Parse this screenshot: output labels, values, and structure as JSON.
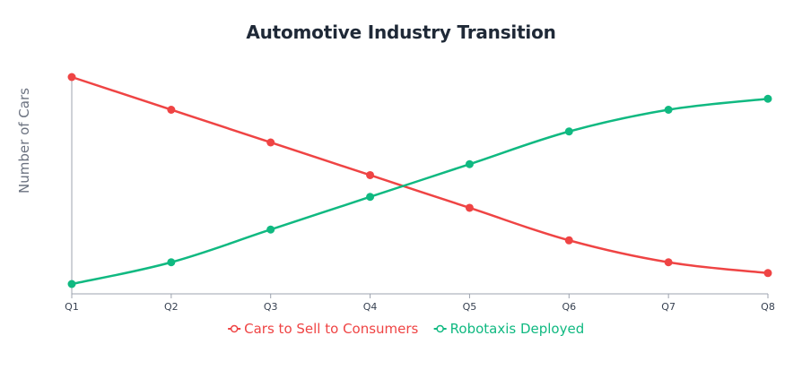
{
  "chart_data": {
    "type": "line",
    "title": "Automotive Industry Transition",
    "xlabel": "",
    "ylabel": "Number of Cars",
    "categories": [
      "Q1",
      "Q2",
      "Q3",
      "Q4",
      "Q5",
      "Q6",
      "Q7",
      "Q8"
    ],
    "ylim": [
      0,
      100
    ],
    "grid": false,
    "legend": "bottom",
    "series": [
      {
        "name": "Cars to Sell to Consumers",
        "color": "#ef4444",
        "values": [
          100,
          84.2,
          68.4,
          52.6,
          36.8,
          21.1,
          10.5,
          5.3
        ]
      },
      {
        "name": "Robotaxis Deployed",
        "color": "#10b981",
        "values": [
          0,
          10.5,
          26.3,
          42.1,
          57.9,
          73.7,
          84.2,
          89.5
        ]
      }
    ]
  }
}
